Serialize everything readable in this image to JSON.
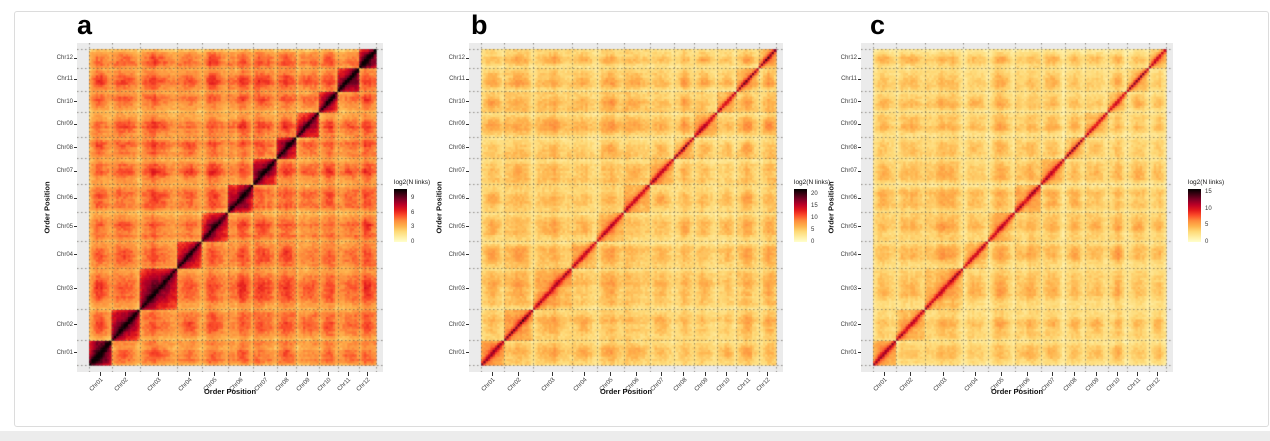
{
  "page": {
    "card_bg": "#ffffff",
    "card_border": "#dcdcdc",
    "footer_strip_color": "#ececec"
  },
  "figure": {
    "panel_bg": "#EBEBEB",
    "grid_color": "rgba(90,85,78,0.8)",
    "axis_text_color": "#3c3c3c",
    "x_title": "Order Position",
    "y_title": "Order Position",
    "categories": [
      "Chr01",
      "Chr02",
      "Chr03",
      "Chr04",
      "Chr05",
      "Chr06",
      "Chr07",
      "Chr08",
      "Chr09",
      "Chr10",
      "Chr11",
      "Chr12"
    ],
    "rel_sizes": [
      24,
      30,
      40,
      26,
      28,
      27,
      25,
      21,
      24,
      20,
      23,
      18
    ],
    "colormap": [
      "#FFFFCC",
      "#FFEDA0",
      "#FED976",
      "#FEB24C",
      "#FD8D3C",
      "#FC4E2A",
      "#E31A1C",
      "#BD0026",
      "#800026",
      "#400013",
      "#000000"
    ]
  },
  "chart_data": [
    {
      "type": "heatmap",
      "panel_label": "a",
      "xlabel": "Order Position",
      "ylabel": "Order Position",
      "categories": [
        "Chr01",
        "Chr02",
        "Chr03",
        "Chr04",
        "Chr05",
        "Chr06",
        "Chr07",
        "Chr08",
        "Chr09",
        "Chr10",
        "Chr11",
        "Chr12"
      ],
      "legend": {
        "title": "log2(N links)",
        "ticks": [
          9,
          6,
          3,
          0
        ],
        "vmin": 0,
        "vmax": 10.8
      },
      "intensity_model": {
        "background": 4.6,
        "within_chrom_base": 1.4,
        "diag_peak": 10.6,
        "diag_slow": 3.0,
        "diag_slow_range": 0.55,
        "diag_core": 2.6,
        "blob": 1.35,
        "edge_fade": 1.1,
        "stripe": 0.1,
        "noise": 0.45,
        "chr_boost": [
          1.7,
          0.5,
          0.2,
          0,
          0,
          0.2,
          0.3,
          0,
          0,
          0.3,
          0.7,
          1.0
        ],
        "seed": 7
      }
    },
    {
      "type": "heatmap",
      "panel_label": "b",
      "xlabel": "Order Position",
      "ylabel": "Order Position",
      "categories": [
        "Chr01",
        "Chr02",
        "Chr03",
        "Chr04",
        "Chr05",
        "Chr06",
        "Chr07",
        "Chr08",
        "Chr09",
        "Chr10",
        "Chr11",
        "Chr12"
      ],
      "legend": {
        "title": "log2(N links)",
        "ticks": [
          20,
          15,
          10,
          5,
          0
        ],
        "vmin": 0,
        "vmax": 22
      },
      "intensity_model": {
        "background": 5.2,
        "within_chrom_base": 1.4,
        "diag_peak": 17.6,
        "diag_slow": 5.0,
        "diag_slow_range": 0.14,
        "diag_core": 6.0,
        "blob": 2.9,
        "edge_fade": 1.25,
        "stripe": 0.13,
        "noise": 0.8,
        "chr_boost": [
          1.8,
          0.5,
          0,
          0,
          0,
          0.4,
          0.6,
          0,
          0.5,
          0,
          0,
          0.7
        ],
        "seed": 13
      }
    },
    {
      "type": "heatmap",
      "panel_label": "c",
      "xlabel": "Order Position",
      "ylabel": "Order Position",
      "categories": [
        "Chr01",
        "Chr02",
        "Chr03",
        "Chr04",
        "Chr05",
        "Chr06",
        "Chr07",
        "Chr08",
        "Chr09",
        "Chr10",
        "Chr11",
        "Chr12"
      ],
      "legend": {
        "title": "log2(N links)",
        "ticks": [
          15,
          10,
          5,
          0
        ],
        "vmin": 0,
        "vmax": 16
      },
      "intensity_model": {
        "background": 3.55,
        "within_chrom_base": 0.9,
        "diag_peak": 12.8,
        "diag_slow": 3.8,
        "diag_slow_range": 0.13,
        "diag_core": 4.5,
        "blob": 1.9,
        "edge_fade": 0.95,
        "stripe": 0.12,
        "noise": 0.55,
        "chr_boost": [
          1.3,
          0.4,
          0,
          0,
          0,
          0.5,
          0.5,
          0,
          0,
          0,
          0,
          0.6
        ],
        "seed": 21
      }
    }
  ]
}
